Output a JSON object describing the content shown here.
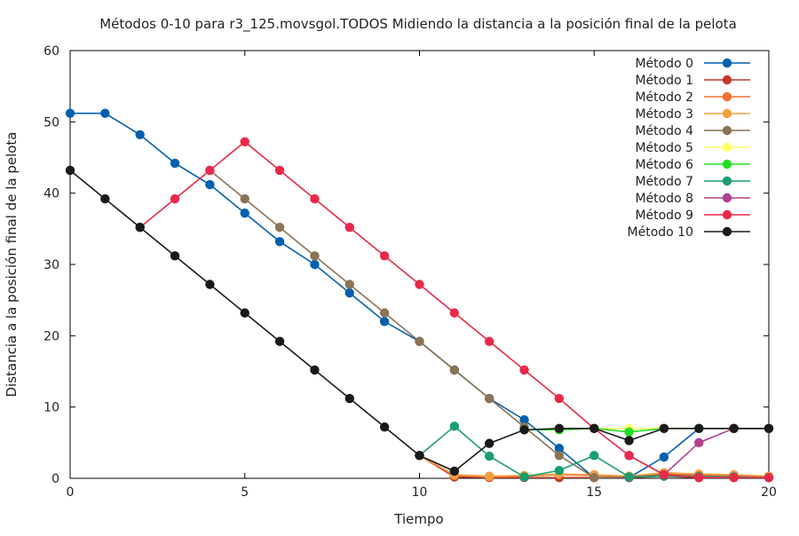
{
  "chart_data": {
    "type": "line",
    "title": "Métodos 0-10 para r3_125.movsgol.TODOS Midiendo la distancia a la posición final de la pelota",
    "xlabel": "Tiempo",
    "ylabel": "Distancia a la posición final de la pelota",
    "xlim": [
      0,
      20
    ],
    "ylim": [
      0,
      60
    ],
    "x_ticks": [
      "0",
      "5",
      "10",
      "15",
      "20"
    ],
    "y_ticks": [
      "0",
      "10",
      "20",
      "30",
      "40",
      "50",
      "60"
    ],
    "grid": false,
    "legend_position": "top-right",
    "x": [
      0,
      1,
      2,
      3,
      4,
      5,
      6,
      7,
      8,
      9,
      10,
      11,
      12,
      13,
      14,
      15,
      16,
      17,
      18,
      19,
      20
    ],
    "series": [
      {
        "name": "Método 0",
        "color": "#0060ad",
        "values": [
          51.2,
          51.2,
          48.2,
          44.2,
          41.2,
          37.2,
          33.2,
          30.0,
          26.0,
          22.0,
          19.2,
          15.2,
          11.2,
          8.2,
          4.2,
          0.1,
          0.1,
          3.0,
          7.0,
          7.0,
          7.0
        ]
      },
      {
        "name": "Método 1",
        "color": "#c0392b",
        "values": [
          null,
          null,
          null,
          null,
          null,
          null,
          null,
          null,
          null,
          null,
          3.2,
          0.2,
          0.1,
          0.1,
          0.1,
          0.1,
          0.1,
          0.3,
          0.1,
          0.1,
          0.1
        ]
      },
      {
        "name": "Método 2",
        "color": "#f07030",
        "values": [
          null,
          null,
          null,
          null,
          null,
          null,
          null,
          null,
          null,
          null,
          3.2,
          0.4,
          0.2,
          0.3,
          0.5,
          0.4,
          0.2,
          0.6,
          0.5,
          0.3,
          0.2
        ]
      },
      {
        "name": "Método 3",
        "color": "#f4a040",
        "values": [
          null,
          null,
          null,
          null,
          null,
          null,
          null,
          null,
          null,
          null,
          3.2,
          0.5,
          0.3,
          0.4,
          0.6,
          0.5,
          0.3,
          0.8,
          0.6,
          0.5,
          0.3
        ]
      },
      {
        "name": "Método 4",
        "color": "#8b7355",
        "values": [
          null,
          null,
          null,
          null,
          43.2,
          39.2,
          35.2,
          31.2,
          27.2,
          23.2,
          19.2,
          15.2,
          11.2,
          7.2,
          3.2,
          0.1,
          0.2,
          0.5,
          0.3,
          0.2,
          0.1
        ]
      },
      {
        "name": "Método 5",
        "color": "#ffff66",
        "values": [
          null,
          null,
          null,
          null,
          null,
          null,
          null,
          null,
          null,
          null,
          null,
          null,
          null,
          null,
          null,
          7.0,
          7.0,
          7.0,
          7.0,
          7.0,
          7.0
        ]
      },
      {
        "name": "Método 6",
        "color": "#22dd22",
        "values": [
          null,
          null,
          null,
          null,
          null,
          null,
          null,
          null,
          null,
          null,
          null,
          null,
          null,
          6.8,
          6.8,
          7.0,
          6.5,
          7.0,
          7.0,
          7.0,
          7.0
        ]
      },
      {
        "name": "Método 7",
        "color": "#1a9e6e",
        "values": [
          null,
          null,
          null,
          null,
          null,
          null,
          null,
          null,
          null,
          null,
          3.2,
          7.3,
          3.1,
          0.2,
          1.1,
          3.2,
          0.2,
          0.3,
          0.2,
          0.2,
          0.1
        ]
      },
      {
        "name": "Método 8",
        "color": "#b04090",
        "values": [
          null,
          null,
          null,
          null,
          null,
          null,
          null,
          null,
          null,
          null,
          null,
          null,
          null,
          null,
          null,
          null,
          3.2,
          0.5,
          5.0,
          7.0,
          7.0
        ]
      },
      {
        "name": "Método 9",
        "color": "#e8294a",
        "values": [
          null,
          null,
          35.2,
          39.2,
          43.2,
          47.2,
          43.2,
          39.2,
          35.2,
          31.2,
          27.2,
          23.2,
          19.2,
          15.2,
          11.2,
          7.0,
          3.2,
          0.5,
          0.1,
          0.1,
          0.1
        ]
      },
      {
        "name": "Método 10",
        "color": "#1a1a1a",
        "values": [
          43.2,
          39.2,
          35.2,
          31.2,
          27.2,
          23.2,
          19.2,
          15.2,
          11.2,
          7.2,
          3.2,
          1.0,
          4.9,
          6.8,
          7.0,
          7.0,
          5.3,
          7.0,
          7.0,
          7.0,
          7.0
        ]
      }
    ]
  }
}
